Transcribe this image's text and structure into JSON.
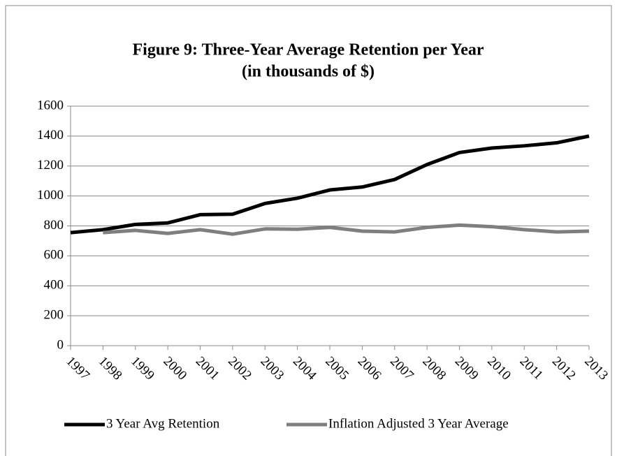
{
  "chart_data": {
    "type": "line",
    "title": "Figure 9: Three-Year Average Retention per Year",
    "subtitle": "(in thousands of $)",
    "categories": [
      "1997",
      "1998",
      "1999",
      "2000",
      "2001",
      "2002",
      "2003",
      "2004",
      "2005",
      "2006",
      "2007",
      "2008",
      "2009",
      "2010",
      "2011",
      "2012",
      "2013"
    ],
    "series": [
      {
        "name": "3 Year Avg Retention",
        "color": "#000000",
        "values": [
          755,
          775,
          810,
          820,
          875,
          878,
          950,
          985,
          1040,
          1060,
          1110,
          1210,
          1290,
          1320,
          1335,
          1355,
          1400
        ]
      },
      {
        "name": "Inflation Adjusted 3 Year Average",
        "color": "#7f7f7f",
        "values": [
          null,
          755,
          770,
          750,
          775,
          745,
          780,
          778,
          790,
          765,
          760,
          790,
          805,
          795,
          775,
          760,
          765
        ]
      }
    ],
    "ylim": [
      0,
      1600
    ],
    "yticks": [
      0,
      200,
      400,
      600,
      800,
      1000,
      1200,
      1400,
      1600
    ],
    "grid": true,
    "legend": "bottom"
  }
}
